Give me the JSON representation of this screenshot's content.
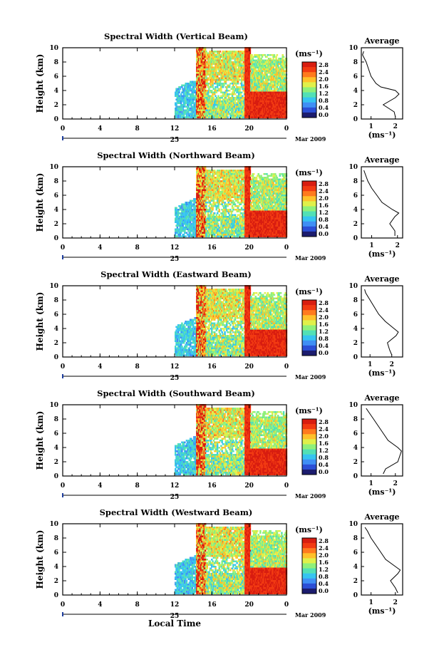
{
  "figure": {
    "xlabel": "Local Time",
    "date_center": "25",
    "date_right": "Mar 2009",
    "ylabel": "Height (km)",
    "colorbar_unit": "(ms⁻¹)",
    "colorbar_ticks": [
      "0.0",
      "0.4",
      "0.8",
      "1.2",
      "1.6",
      "2.0",
      "2.4",
      "2.8"
    ],
    "avg_title": "Average",
    "avg_unit": "(ms⁻¹)",
    "x_ticks": [
      "0",
      "4",
      "8",
      "12",
      "16",
      "20",
      "0"
    ],
    "y_ticks": [
      "0",
      "2",
      "4",
      "6",
      "8",
      "10"
    ],
    "avg_y_ticks": [
      "0",
      "2",
      "4",
      "6",
      "8",
      "10"
    ]
  },
  "colors": {
    "scale": [
      "#1c1c6e",
      "#2b4fd6",
      "#3f8ff5",
      "#36c4f0",
      "#52e0b5",
      "#8ff07a",
      "#e0f04a",
      "#ffc02a",
      "#ff7a1e",
      "#f23a12",
      "#d81d10"
    ]
  },
  "chart_data": [
    {
      "type": "heatmap",
      "title": "Spectral Width (Vertical Beam)",
      "x_range_hours": [
        0,
        24
      ],
      "y_range_km": [
        0,
        10
      ],
      "color_range": [
        0.0,
        2.8
      ],
      "average_profile": {
        "xticks": [
          "1",
          "2"
        ],
        "xlim": [
          0.6,
          2.3
        ],
        "height_km": [
          0.3,
          1,
          2,
          3,
          3.5,
          4,
          4.5,
          5,
          6,
          7,
          8,
          9,
          9.5
        ],
        "value": [
          2.0,
          1.95,
          1.5,
          2.0,
          2.15,
          2.0,
          1.4,
          1.2,
          1.0,
          0.9,
          0.8,
          0.65,
          0.7
        ]
      }
    },
    {
      "type": "heatmap",
      "title": "Spectral Width (Northward Beam)",
      "x_range_hours": [
        0,
        24
      ],
      "y_range_km": [
        0,
        10
      ],
      "color_range": [
        0.0,
        2.8
      ],
      "average_profile": {
        "xticks": [
          "1",
          "2"
        ],
        "xlim": [
          0.6,
          2.2
        ],
        "height_km": [
          0.3,
          1,
          2,
          3,
          3.5,
          4,
          5,
          6,
          7,
          8,
          9,
          9.5
        ],
        "value": [
          1.9,
          1.9,
          1.7,
          1.9,
          2.05,
          1.8,
          1.4,
          1.2,
          1.0,
          0.85,
          0.75,
          0.7
        ]
      }
    },
    {
      "type": "heatmap",
      "title": "Spectral Width (Eastward Beam)",
      "x_range_hours": [
        0,
        24
      ],
      "y_range_km": [
        0,
        10
      ],
      "color_range": [
        0.0,
        2.8
      ],
      "average_profile": {
        "xticks": [
          "1",
          "2"
        ],
        "xlim": [
          0.6,
          2.5
        ],
        "height_km": [
          0.3,
          1,
          2,
          3,
          3.5,
          4,
          5,
          6,
          7,
          8,
          9,
          9.5
        ],
        "value": [
          2.0,
          1.9,
          1.8,
          2.2,
          2.3,
          2.1,
          1.7,
          1.4,
          1.2,
          1.0,
          0.8,
          0.75
        ]
      }
    },
    {
      "type": "heatmap",
      "title": "Spectral Width (Southward Beam)",
      "x_range_hours": [
        0,
        24
      ],
      "y_range_km": [
        0,
        10
      ],
      "color_range": [
        0.0,
        2.8
      ],
      "average_profile": {
        "xticks": [
          "1",
          "2"
        ],
        "xlim": [
          0.6,
          2.3
        ],
        "height_km": [
          0.3,
          1,
          2,
          3,
          3.5,
          4,
          5,
          6,
          7,
          8,
          9,
          9.5
        ],
        "value": [
          1.5,
          1.6,
          2.1,
          2.2,
          2.25,
          2.1,
          1.7,
          1.5,
          1.3,
          1.1,
          0.9,
          0.8
        ]
      }
    },
    {
      "type": "heatmap",
      "title": "Spectral Width (Westward Beam)",
      "x_range_hours": [
        0,
        24
      ],
      "y_range_km": [
        0,
        10
      ],
      "color_range": [
        0.0,
        2.8
      ],
      "average_profile": {
        "xticks": [
          "1",
          "2"
        ],
        "xlim": [
          0.6,
          2.3
        ],
        "height_km": [
          0.3,
          1,
          2,
          3,
          3.5,
          4,
          5,
          6,
          7,
          8,
          9,
          9.5
        ],
        "value": [
          2.1,
          2.0,
          1.8,
          2.1,
          2.2,
          2.0,
          1.6,
          1.4,
          1.2,
          1.0,
          0.85,
          0.75
        ]
      }
    }
  ]
}
